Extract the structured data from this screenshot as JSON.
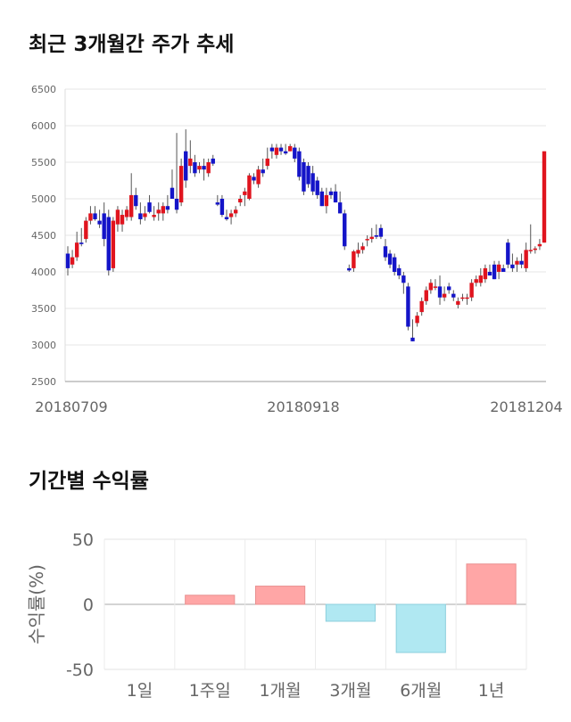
{
  "sections": {
    "price_title": "최근 3개월간 주가 추세",
    "returns_title": "기간별 수익률"
  },
  "chart_data": [
    {
      "type": "candlestick",
      "title": "최근 3개월간 주가 추세",
      "ylim": [
        2500,
        6500
      ],
      "yticks": [
        2500,
        3000,
        3500,
        4000,
        4500,
        5000,
        5500,
        6000,
        6500
      ],
      "x_tick_labels": [
        "20180709",
        "20180918",
        "20181204"
      ],
      "grid": true,
      "colors": {
        "up": "#e0141e",
        "down": "#1414c8",
        "wick": "#555555"
      },
      "candles": [
        {
          "o": 4250,
          "h": 4350,
          "l": 3950,
          "c": 4050
        },
        {
          "o": 4100,
          "h": 4300,
          "l": 4050,
          "c": 4200
        },
        {
          "o": 4200,
          "h": 4550,
          "l": 4150,
          "c": 4400
        },
        {
          "o": 4400,
          "h": 4600,
          "l": 4350,
          "c": 4380
        },
        {
          "o": 4450,
          "h": 4750,
          "l": 4400,
          "c": 4700
        },
        {
          "o": 4700,
          "h": 4900,
          "l": 4650,
          "c": 4800
        },
        {
          "o": 4800,
          "h": 4900,
          "l": 4700,
          "c": 4720
        },
        {
          "o": 4700,
          "h": 4850,
          "l": 4600,
          "c": 4650
        },
        {
          "o": 4800,
          "h": 4950,
          "l": 4350,
          "c": 4450
        },
        {
          "o": 4750,
          "h": 4850,
          "l": 3950,
          "c": 4020
        },
        {
          "o": 4050,
          "h": 4750,
          "l": 4000,
          "c": 4700
        },
        {
          "o": 4650,
          "h": 4900,
          "l": 4550,
          "c": 4850
        },
        {
          "o": 4650,
          "h": 4850,
          "l": 4550,
          "c": 4780
        },
        {
          "o": 4750,
          "h": 4900,
          "l": 4700,
          "c": 4850
        },
        {
          "o": 4750,
          "h": 5350,
          "l": 4700,
          "c": 5050
        },
        {
          "o": 5050,
          "h": 5150,
          "l": 4850,
          "c": 4900
        },
        {
          "o": 4800,
          "h": 4950,
          "l": 4650,
          "c": 4720
        },
        {
          "o": 4750,
          "h": 4900,
          "l": 4700,
          "c": 4800
        },
        {
          "o": 4950,
          "h": 5050,
          "l": 4800,
          "c": 4820
        },
        {
          "o": 4750,
          "h": 4900,
          "l": 4700,
          "c": 4780
        },
        {
          "o": 4800,
          "h": 4950,
          "l": 4700,
          "c": 4850
        },
        {
          "o": 4800,
          "h": 4950,
          "l": 4700,
          "c": 4900
        },
        {
          "o": 4900,
          "h": 5050,
          "l": 4800,
          "c": 4850
        },
        {
          "o": 5150,
          "h": 5400,
          "l": 5000,
          "c": 5000
        },
        {
          "o": 5000,
          "h": 5900,
          "l": 4800,
          "c": 4850
        },
        {
          "o": 4950,
          "h": 5550,
          "l": 4900,
          "c": 5450
        },
        {
          "o": 5650,
          "h": 5950,
          "l": 5150,
          "c": 5250
        },
        {
          "o": 5450,
          "h": 5800,
          "l": 5350,
          "c": 5550
        },
        {
          "o": 5500,
          "h": 5600,
          "l": 5300,
          "c": 5350
        },
        {
          "o": 5400,
          "h": 5500,
          "l": 5350,
          "c": 5450
        },
        {
          "o": 5450,
          "h": 5550,
          "l": 5250,
          "c": 5400
        },
        {
          "o": 5350,
          "h": 5550,
          "l": 5300,
          "c": 5500
        },
        {
          "o": 5550,
          "h": 5600,
          "l": 5450,
          "c": 5480
        },
        {
          "o": 4950,
          "h": 5050,
          "l": 4900,
          "c": 4920
        },
        {
          "o": 5000,
          "h": 5050,
          "l": 4750,
          "c": 4780
        },
        {
          "o": 4750,
          "h": 4850,
          "l": 4700,
          "c": 4720
        },
        {
          "o": 4750,
          "h": 4850,
          "l": 4650,
          "c": 4800
        },
        {
          "o": 4800,
          "h": 4900,
          "l": 4750,
          "c": 4850
        },
        {
          "o": 4950,
          "h": 5050,
          "l": 4900,
          "c": 5000
        },
        {
          "o": 5050,
          "h": 5150,
          "l": 4900,
          "c": 5100
        },
        {
          "o": 5000,
          "h": 5350,
          "l": 4980,
          "c": 5320
        },
        {
          "o": 5300,
          "h": 5350,
          "l": 5200,
          "c": 5250
        },
        {
          "o": 5200,
          "h": 5450,
          "l": 5150,
          "c": 5400
        },
        {
          "o": 5400,
          "h": 5550,
          "l": 5300,
          "c": 5350
        },
        {
          "o": 5450,
          "h": 5700,
          "l": 5400,
          "c": 5550
        },
        {
          "o": 5700,
          "h": 5750,
          "l": 5550,
          "c": 5650
        },
        {
          "o": 5600,
          "h": 5750,
          "l": 5550,
          "c": 5700
        },
        {
          "o": 5700,
          "h": 5750,
          "l": 5600,
          "c": 5650
        },
        {
          "o": 5650,
          "h": 5750,
          "l": 5600,
          "c": 5620
        },
        {
          "o": 5650,
          "h": 5750,
          "l": 5650,
          "c": 5720
        },
        {
          "o": 5700,
          "h": 5750,
          "l": 5500,
          "c": 5550
        },
        {
          "o": 5650,
          "h": 5700,
          "l": 5250,
          "c": 5300
        },
        {
          "o": 5500,
          "h": 5550,
          "l": 5050,
          "c": 5100
        },
        {
          "o": 5450,
          "h": 5500,
          "l": 5150,
          "c": 5200
        },
        {
          "o": 5350,
          "h": 5450,
          "l": 5050,
          "c": 5100
        },
        {
          "o": 5250,
          "h": 5300,
          "l": 5000,
          "c": 5050
        },
        {
          "o": 5100,
          "h": 5150,
          "l": 4900,
          "c": 4900
        },
        {
          "o": 4900,
          "h": 5150,
          "l": 4800,
          "c": 5050
        },
        {
          "o": 5100,
          "h": 5150,
          "l": 5000,
          "c": 5050
        },
        {
          "o": 5100,
          "h": 5200,
          "l": 4950,
          "c": 4950
        },
        {
          "o": 4950,
          "h": 5100,
          "l": 4800,
          "c": 4800
        },
        {
          "o": 4800,
          "h": 4850,
          "l": 4300,
          "c": 4350
        },
        {
          "o": 4050,
          "h": 4100,
          "l": 4000,
          "c": 4020
        },
        {
          "o": 4050,
          "h": 4300,
          "l": 4000,
          "c": 4280
        },
        {
          "o": 4250,
          "h": 4400,
          "l": 4200,
          "c": 4300
        },
        {
          "o": 4300,
          "h": 4400,
          "l": 4250,
          "c": 4350
        },
        {
          "o": 4450,
          "h": 4500,
          "l": 4350,
          "c": 4450
        },
        {
          "o": 4450,
          "h": 4600,
          "l": 4400,
          "c": 4480
        },
        {
          "o": 4500,
          "h": 4650,
          "l": 4450,
          "c": 4480
        },
        {
          "o": 4600,
          "h": 4650,
          "l": 4450,
          "c": 4480
        },
        {
          "o": 4350,
          "h": 4450,
          "l": 4150,
          "c": 4200
        },
        {
          "o": 4250,
          "h": 4300,
          "l": 4050,
          "c": 4100
        },
        {
          "o": 4200,
          "h": 4250,
          "l": 3950,
          "c": 4000
        },
        {
          "o": 4050,
          "h": 4100,
          "l": 3900,
          "c": 3950
        },
        {
          "o": 3950,
          "h": 4000,
          "l": 3700,
          "c": 3850
        },
        {
          "o": 3800,
          "h": 3850,
          "l": 3200,
          "c": 3250
        },
        {
          "o": 3100,
          "h": 3350,
          "l": 3050,
          "c": 3050
        },
        {
          "o": 3300,
          "h": 3450,
          "l": 3250,
          "c": 3400
        },
        {
          "o": 3450,
          "h": 3650,
          "l": 3400,
          "c": 3600
        },
        {
          "o": 3600,
          "h": 3800,
          "l": 3550,
          "c": 3750
        },
        {
          "o": 3750,
          "h": 3900,
          "l": 3700,
          "c": 3850
        },
        {
          "o": 3800,
          "h": 3900,
          "l": 3750,
          "c": 3800
        },
        {
          "o": 3800,
          "h": 3950,
          "l": 3550,
          "c": 3650
        },
        {
          "o": 3650,
          "h": 3800,
          "l": 3600,
          "c": 3700
        },
        {
          "o": 3800,
          "h": 3850,
          "l": 3700,
          "c": 3750
        },
        {
          "o": 3700,
          "h": 3750,
          "l": 3600,
          "c": 3650
        },
        {
          "o": 3550,
          "h": 3650,
          "l": 3500,
          "c": 3600
        },
        {
          "o": 3650,
          "h": 3700,
          "l": 3600,
          "c": 3650
        },
        {
          "o": 3650,
          "h": 3700,
          "l": 3550,
          "c": 3650
        },
        {
          "o": 3650,
          "h": 3900,
          "l": 3600,
          "c": 3850
        },
        {
          "o": 3850,
          "h": 3950,
          "l": 3800,
          "c": 3900
        },
        {
          "o": 3850,
          "h": 4050,
          "l": 3800,
          "c": 3950
        },
        {
          "o": 3900,
          "h": 4100,
          "l": 3850,
          "c": 4050
        },
        {
          "o": 4000,
          "h": 4100,
          "l": 3950,
          "c": 3950
        },
        {
          "o": 4100,
          "h": 4150,
          "l": 3900,
          "c": 3900
        },
        {
          "o": 4000,
          "h": 4150,
          "l": 3900,
          "c": 4100
        },
        {
          "o": 4050,
          "h": 4100,
          "l": 4000,
          "c": 4000
        },
        {
          "o": 4400,
          "h": 4450,
          "l": 4050,
          "c": 4100
        },
        {
          "o": 4100,
          "h": 4250,
          "l": 4000,
          "c": 4050
        },
        {
          "o": 4100,
          "h": 4200,
          "l": 4000,
          "c": 4150
        },
        {
          "o": 4150,
          "h": 4250,
          "l": 4050,
          "c": 4100
        },
        {
          "o": 4050,
          "h": 4400,
          "l": 4000,
          "c": 4300
        },
        {
          "o": 4300,
          "h": 4650,
          "l": 4250,
          "c": 4300
        },
        {
          "o": 4300,
          "h": 4350,
          "l": 4250,
          "c": 4320
        },
        {
          "o": 4350,
          "h": 4450,
          "l": 4300,
          "c": 4380
        },
        {
          "o": 4400,
          "h": 5650,
          "l": 4400,
          "c": 5650
        }
      ]
    },
    {
      "type": "bar",
      "title": "기간별 수익률",
      "categories": [
        "1일",
        "1주일",
        "1개월",
        "3개월",
        "6개월",
        "1년"
      ],
      "values": [
        0,
        7,
        14,
        -13,
        -37,
        31
      ],
      "ylabel": "수익률(%)",
      "ylim": [
        -50,
        50
      ],
      "yticks": [
        50,
        0,
        -50
      ],
      "grid": true,
      "colors": {
        "positive": "#ffa6a6",
        "positive_edge": "#e89090",
        "negative": "#b0e8f2",
        "negative_edge": "#8ccfdc"
      }
    }
  ]
}
